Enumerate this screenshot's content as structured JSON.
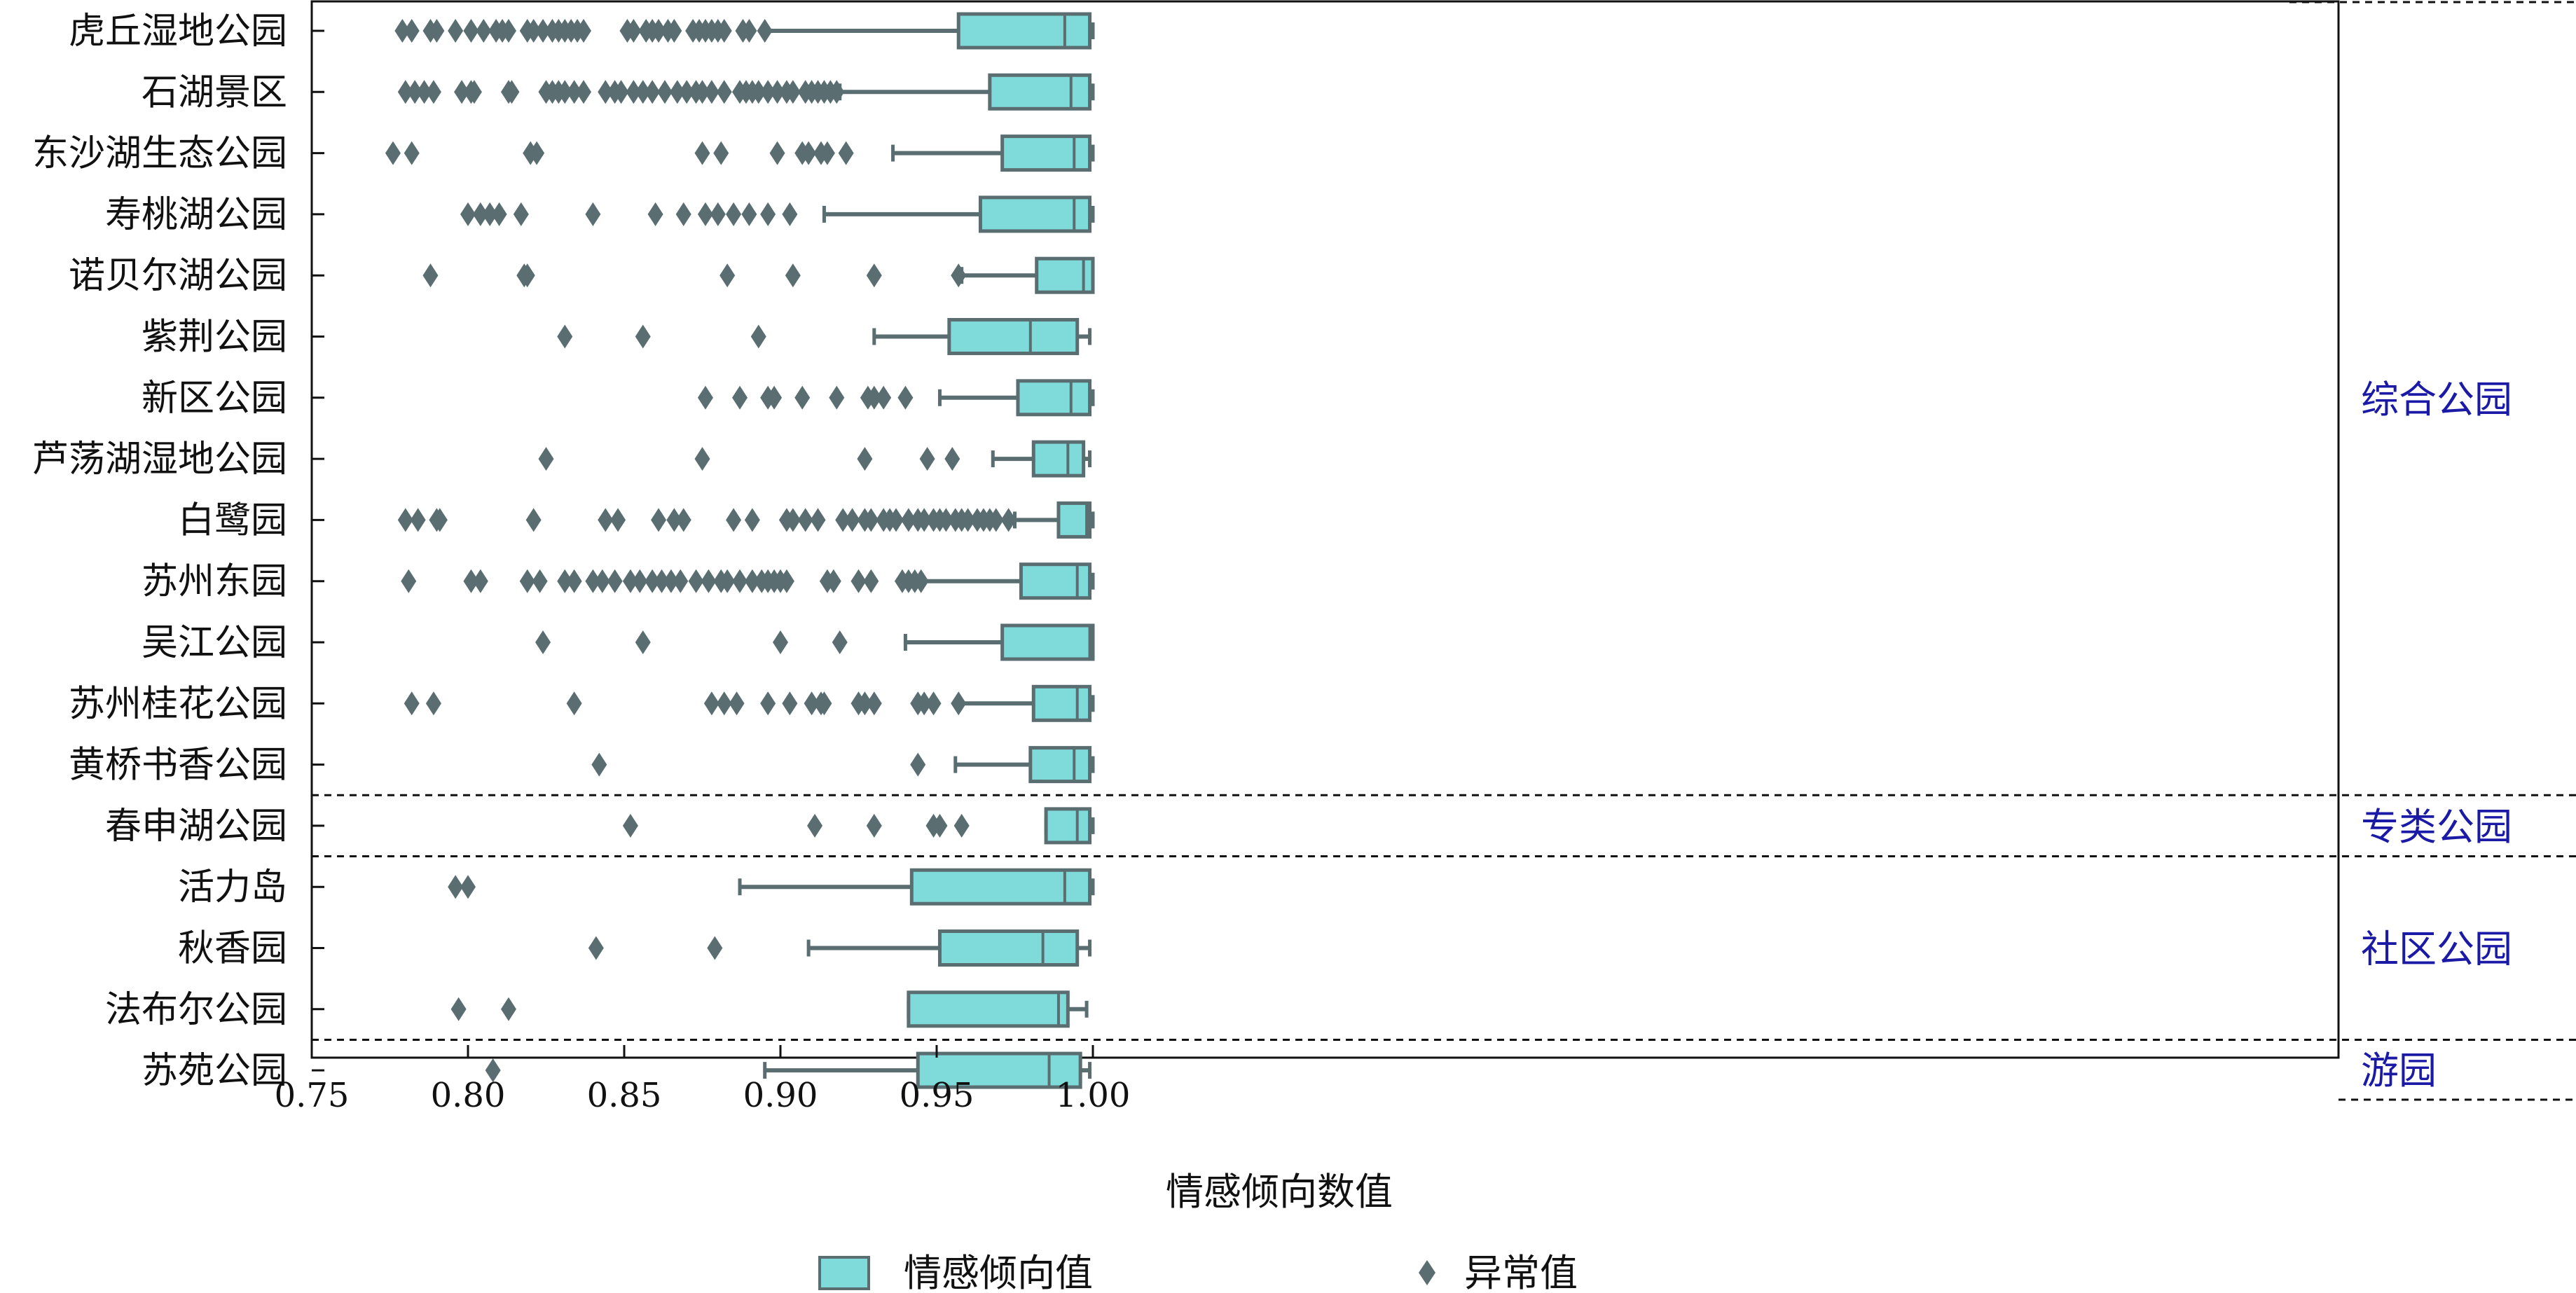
{
  "chart_data": {
    "type": "box",
    "orientation": "horizontal",
    "xlabel": "情感倾向数值",
    "xlim": [
      0.75,
      1.009
    ],
    "xticks": [
      "0.75",
      "0.80",
      "0.85",
      "0.90",
      "0.95",
      "1.00"
    ],
    "tick_values": [
      0.75,
      0.8,
      0.85,
      0.9,
      0.95,
      1.0
    ],
    "legend": [
      {
        "label": "情感倾向值",
        "marker": "box"
      },
      {
        "label": "异常值",
        "marker": "diamond"
      }
    ],
    "colors": {
      "box_fill": "#7fdada",
      "box_stroke": "#5a6e72",
      "outlier": "#5a6e72",
      "group_label": "#1a1aa6"
    },
    "groups": [
      {
        "name": "综合公园",
        "rows": [
          0,
          12
        ]
      },
      {
        "name": "专类公园",
        "rows": [
          13,
          13
        ]
      },
      {
        "name": "社区公园",
        "rows": [
          14,
          16
        ]
      },
      {
        "name": "游园",
        "rows": [
          17,
          17
        ]
      }
    ],
    "series": [
      {
        "name": "虎丘湿地公园",
        "whisker_low": 0.895,
        "q1": 0.957,
        "median": 0.991,
        "q3": 0.999,
        "whisker_high": 1.0,
        "outliers": [
          0.779,
          0.782,
          0.788,
          0.79,
          0.796,
          0.801,
          0.805,
          0.809,
          0.811,
          0.813,
          0.819,
          0.821,
          0.824,
          0.827,
          0.829,
          0.831,
          0.833,
          0.835,
          0.837,
          0.851,
          0.853,
          0.857,
          0.859,
          0.861,
          0.864,
          0.866,
          0.872,
          0.874,
          0.876,
          0.878,
          0.88,
          0.882,
          0.888,
          0.89,
          0.895
        ]
      },
      {
        "name": "石湖景区",
        "whisker_low": 0.919,
        "q1": 0.967,
        "median": 0.993,
        "q3": 0.999,
        "whisker_high": 1.0,
        "outliers": [
          0.78,
          0.783,
          0.786,
          0.789,
          0.798,
          0.801,
          0.802,
          0.813,
          0.814,
          0.825,
          0.827,
          0.829,
          0.831,
          0.834,
          0.837,
          0.844,
          0.847,
          0.849,
          0.853,
          0.856,
          0.859,
          0.863,
          0.867,
          0.87,
          0.873,
          0.875,
          0.878,
          0.882,
          0.887,
          0.889,
          0.891,
          0.893,
          0.896,
          0.899,
          0.902,
          0.904,
          0.908,
          0.91,
          0.912,
          0.914,
          0.916,
          0.918
        ]
      },
      {
        "name": "东沙湖生态公园",
        "whisker_low": 0.936,
        "q1": 0.971,
        "median": 0.994,
        "q3": 0.999,
        "whisker_high": 1.0,
        "outliers": [
          0.776,
          0.782,
          0.82,
          0.822,
          0.875,
          0.881,
          0.899,
          0.907,
          0.909,
          0.913,
          0.915,
          0.921
        ]
      },
      {
        "name": "寿桃湖公园",
        "whisker_low": 0.914,
        "q1": 0.964,
        "median": 0.994,
        "q3": 0.999,
        "whisker_high": 1.0,
        "outliers": [
          0.8,
          0.804,
          0.807,
          0.81,
          0.817,
          0.84,
          0.86,
          0.869,
          0.876,
          0.88,
          0.885,
          0.89,
          0.896,
          0.903
        ]
      },
      {
        "name": "诺贝尔湖公园",
        "whisker_low": 0.958,
        "q1": 0.982,
        "median": 0.997,
        "q3": 1.0,
        "whisker_high": 1.0,
        "outliers": [
          0.788,
          0.818,
          0.819,
          0.883,
          0.904,
          0.93,
          0.957
        ]
      },
      {
        "name": "紫荆公园",
        "whisker_low": 0.93,
        "q1": 0.954,
        "median": 0.98,
        "q3": 0.995,
        "whisker_high": 0.999,
        "outliers": [
          0.831,
          0.856,
          0.893
        ]
      },
      {
        "name": "新区公园",
        "whisker_low": 0.951,
        "q1": 0.976,
        "median": 0.993,
        "q3": 0.999,
        "whisker_high": 1.0,
        "outliers": [
          0.876,
          0.887,
          0.896,
          0.898,
          0.907,
          0.918,
          0.928,
          0.93,
          0.933,
          0.94
        ]
      },
      {
        "name": "芦荡湖湿地公园",
        "whisker_low": 0.968,
        "q1": 0.981,
        "median": 0.992,
        "q3": 0.997,
        "whisker_high": 0.999,
        "outliers": [
          0.825,
          0.875,
          0.927,
          0.947,
          0.955
        ]
      },
      {
        "name": "白鹭园",
        "whisker_low": 0.975,
        "q1": 0.989,
        "median": 0.998,
        "q3": 0.999,
        "whisker_high": 1.0,
        "outliers": [
          0.78,
          0.784,
          0.79,
          0.791,
          0.821,
          0.844,
          0.848,
          0.861,
          0.866,
          0.869,
          0.885,
          0.891,
          0.902,
          0.904,
          0.908,
          0.912,
          0.92,
          0.923,
          0.927,
          0.929,
          0.933,
          0.935,
          0.937,
          0.941,
          0.944,
          0.946,
          0.949,
          0.951,
          0.953,
          0.956,
          0.958,
          0.96,
          0.963,
          0.965,
          0.967,
          0.969,
          0.973
        ]
      },
      {
        "name": "苏州东园",
        "whisker_low": 0.945,
        "q1": 0.977,
        "median": 0.995,
        "q3": 0.999,
        "whisker_high": 1.0,
        "outliers": [
          0.781,
          0.801,
          0.804,
          0.819,
          0.823,
          0.831,
          0.834,
          0.84,
          0.843,
          0.847,
          0.852,
          0.855,
          0.859,
          0.862,
          0.865,
          0.868,
          0.873,
          0.877,
          0.881,
          0.883,
          0.887,
          0.891,
          0.894,
          0.896,
          0.898,
          0.9,
          0.902,
          0.915,
          0.917,
          0.925,
          0.929,
          0.939,
          0.941,
          0.943,
          0.945
        ]
      },
      {
        "name": "吴江公园",
        "whisker_low": 0.94,
        "q1": 0.971,
        "median": 0.999,
        "q3": 1.0,
        "whisker_high": 1.0,
        "outliers": [
          0.824,
          0.856,
          0.9,
          0.919
        ]
      },
      {
        "name": "苏州桂花公园",
        "whisker_low": 0.957,
        "q1": 0.981,
        "median": 0.995,
        "q3": 0.999,
        "whisker_high": 1.0,
        "outliers": [
          0.782,
          0.789,
          0.834,
          0.878,
          0.882,
          0.886,
          0.896,
          0.903,
          0.91,
          0.913,
          0.914,
          0.925,
          0.927,
          0.93,
          0.944,
          0.946,
          0.949,
          0.957
        ]
      },
      {
        "name": "黄桥书香公园",
        "whisker_low": 0.956,
        "q1": 0.98,
        "median": 0.994,
        "q3": 0.999,
        "whisker_high": 1.0,
        "outliers": [
          0.842,
          0.944
        ]
      },
      {
        "name": "春申湖公园",
        "whisker_low": 0.985,
        "q1": 0.985,
        "median": 0.995,
        "q3": 0.999,
        "whisker_high": 1.0,
        "outliers": [
          0.852,
          0.911,
          0.93,
          0.949,
          0.951,
          0.958
        ]
      },
      {
        "name": "活力岛",
        "whisker_low": 0.887,
        "q1": 0.942,
        "median": 0.991,
        "q3": 0.999,
        "whisker_high": 1.0,
        "outliers": [
          0.796,
          0.8
        ]
      },
      {
        "name": "秋香园",
        "whisker_low": 0.909,
        "q1": 0.951,
        "median": 0.984,
        "q3": 0.995,
        "whisker_high": 0.999,
        "outliers": [
          0.841,
          0.879
        ]
      },
      {
        "name": "法布尔公园",
        "whisker_low": 0.941,
        "q1": 0.941,
        "median": 0.989,
        "q3": 0.992,
        "whisker_high": 0.998,
        "outliers": [
          0.797,
          0.813
        ]
      },
      {
        "name": "苏苑公园",
        "whisker_low": 0.895,
        "q1": 0.944,
        "median": 0.986,
        "q3": 0.996,
        "whisker_high": 0.999,
        "outliers": [
          0.808
        ]
      }
    ]
  }
}
